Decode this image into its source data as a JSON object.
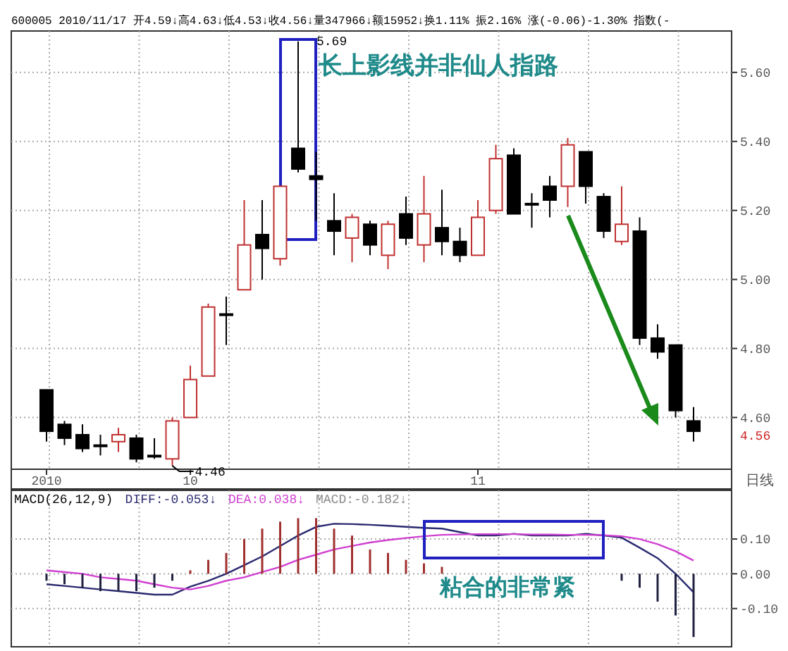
{
  "chart_data": [
    {
      "type": "candlestick",
      "subtitle": "600005 2010/11/17 开4.59↓高4.63↓低4.53↓收4.56↓量347966↓额15952↓换1.11% 振2.16% 涨(-0.06)-1.30% 指数(-",
      "categories": [
        "2010",
        null,
        null,
        null,
        null,
        null,
        null,
        null,
        "10",
        null,
        null,
        null,
        null,
        null,
        null,
        null,
        null,
        null,
        null,
        null,
        null,
        null,
        null,
        null,
        "11",
        null,
        null,
        null,
        null,
        null,
        null,
        null,
        null,
        null,
        null,
        null,
        null
      ],
      "ohlc": [
        [
          4.68,
          4.68,
          4.53,
          4.56
        ],
        [
          4.58,
          4.59,
          4.52,
          4.54
        ],
        [
          4.55,
          4.58,
          4.5,
          4.51
        ],
        [
          4.52,
          4.55,
          4.49,
          4.52
        ],
        [
          4.53,
          4.57,
          4.5,
          4.55
        ],
        [
          4.54,
          4.55,
          4.47,
          4.48
        ],
        [
          4.49,
          4.54,
          4.48,
          4.49
        ],
        [
          4.48,
          4.6,
          4.46,
          4.59
        ],
        [
          4.6,
          4.75,
          4.6,
          4.71
        ],
        [
          4.72,
          4.93,
          4.72,
          4.92
        ],
        [
          4.9,
          4.95,
          4.81,
          4.9
        ],
        [
          4.97,
          5.23,
          4.97,
          5.1
        ],
        [
          5.13,
          5.23,
          5.0,
          5.09
        ],
        [
          5.06,
          5.27,
          5.04,
          5.27
        ],
        [
          5.38,
          5.69,
          5.31,
          5.32
        ],
        [
          5.3,
          5.37,
          5.17,
          5.29
        ],
        [
          5.17,
          5.25,
          5.07,
          5.14
        ],
        [
          5.12,
          5.19,
          5.05,
          5.18
        ],
        [
          5.16,
          5.17,
          5.07,
          5.1
        ],
        [
          5.07,
          5.17,
          5.03,
          5.16
        ],
        [
          5.19,
          5.24,
          5.1,
          5.12
        ],
        [
          5.1,
          5.3,
          5.05,
          5.19
        ],
        [
          5.15,
          5.26,
          5.07,
          5.11
        ],
        [
          5.11,
          5.15,
          5.05,
          5.07
        ],
        [
          5.07,
          5.23,
          5.07,
          5.18
        ],
        [
          5.2,
          5.39,
          5.19,
          5.35
        ],
        [
          5.36,
          5.38,
          5.19,
          5.19
        ],
        [
          5.22,
          5.25,
          5.15,
          5.22
        ],
        [
          5.27,
          5.3,
          5.18,
          5.23
        ],
        [
          5.27,
          5.41,
          5.21,
          5.39
        ],
        [
          5.37,
          5.37,
          5.22,
          5.27
        ],
        [
          5.24,
          5.25,
          5.12,
          5.14
        ],
        [
          5.11,
          5.27,
          5.1,
          5.16
        ],
        [
          5.14,
          5.18,
          4.81,
          4.83
        ],
        [
          4.83,
          4.87,
          4.77,
          4.79
        ],
        [
          4.81,
          4.81,
          4.6,
          4.62
        ],
        [
          4.59,
          4.63,
          4.53,
          4.56
        ]
      ],
      "ylim": [
        4.45,
        5.72
      ],
      "yticks": [
        {
          "value": 4.6,
          "label": "4.60"
        },
        {
          "value": 4.8,
          "label": "4.80"
        },
        {
          "value": 5.0,
          "label": "5.00"
        },
        {
          "value": 5.2,
          "label": "5.20"
        },
        {
          "value": 5.4,
          "label": "5.40"
        },
        {
          "value": 5.6,
          "label": "5.60"
        }
      ],
      "grid": true,
      "annotations": [
        "长上影线并非仙人指路",
        "日线",
        "5.69",
        "4.46",
        "4.56"
      ]
    },
    {
      "type": "bar",
      "title": "MACD(26,12,9)",
      "legend": "top left",
      "tick_labels": "y",
      "categories": [
        null,
        null,
        null,
        null,
        null,
        null,
        null,
        null,
        null,
        null,
        null,
        null,
        null,
        null,
        null,
        null,
        null,
        null,
        null,
        null,
        null,
        null,
        null,
        null,
        null,
        null,
        null,
        null,
        null,
        null,
        null,
        null,
        null,
        null,
        null,
        null,
        null
      ],
      "series": [
        {
          "name": "DIFF:-0.053↓",
          "type": "line",
          "color": "#2a2a70",
          "values": [
            -0.03,
            -0.035,
            -0.04,
            -0.045,
            -0.05,
            -0.055,
            -0.06,
            -0.06,
            -0.037,
            -0.02,
            0.0,
            0.025,
            0.05,
            0.08,
            0.11,
            0.135,
            0.144,
            0.143,
            0.141,
            0.138,
            0.135,
            0.132,
            0.13,
            0.12,
            0.11,
            0.11,
            0.115,
            0.11,
            0.11,
            0.11,
            0.115,
            0.11,
            0.104,
            0.075,
            0.045,
            0.0,
            -0.053
          ]
        },
        {
          "name": "DEA:0.038↓",
          "type": "line",
          "color": "#d040d0",
          "values": [
            0.01,
            0.005,
            0.0,
            -0.01,
            -0.015,
            -0.02,
            -0.03,
            -0.04,
            -0.045,
            -0.035,
            -0.02,
            -0.01,
            0.005,
            0.02,
            0.04,
            0.055,
            0.07,
            0.08,
            0.09,
            0.097,
            0.103,
            0.108,
            0.112,
            0.113,
            0.114,
            0.114,
            0.114,
            0.113,
            0.113,
            0.112,
            0.112,
            0.111,
            0.108,
            0.1,
            0.085,
            0.065,
            0.038
          ]
        },
        {
          "name": "MACD:-0.182↓",
          "colors": [
            "#202040",
            "#202040",
            "#202040",
            "#202040",
            "#202040",
            "#202040",
            "#202040",
            "#202040",
            "#a03030",
            "#a03030",
            "#a03030",
            "#a03030",
            "#a03030",
            "#a03030",
            "#a03030",
            "#a03030",
            "#a03030",
            "#a03030",
            "#a03030",
            "#a03030",
            "#a03030",
            "#a03030",
            "#a03030",
            null,
            null,
            null,
            null,
            null,
            null,
            null,
            null,
            null,
            "#202040",
            "#202040",
            "#202040",
            "#202040",
            "#202040"
          ],
          "values": [
            -0.02,
            -0.03,
            -0.04,
            -0.05,
            -0.05,
            -0.05,
            -0.04,
            -0.02,
            0.01,
            0.04,
            0.06,
            0.1,
            0.13,
            0.15,
            0.16,
            0.16,
            0.13,
            0.11,
            0.07,
            0.06,
            0.04,
            0.03,
            0.02,
            null,
            null,
            null,
            null,
            null,
            null,
            null,
            null,
            null,
            -0.02,
            -0.04,
            -0.08,
            -0.12,
            -0.182
          ]
        }
      ],
      "ylim": [
        -0.21,
        0.24
      ],
      "yticks": [
        {
          "value": 0.1,
          "label": "0.10"
        },
        {
          "value": 0,
          "label": "0.00"
        },
        {
          "value": -0.1,
          "label": "-0.10"
        }
      ],
      "grid": true,
      "annotations": [
        "粘合的非常紧"
      ]
    }
  ]
}
